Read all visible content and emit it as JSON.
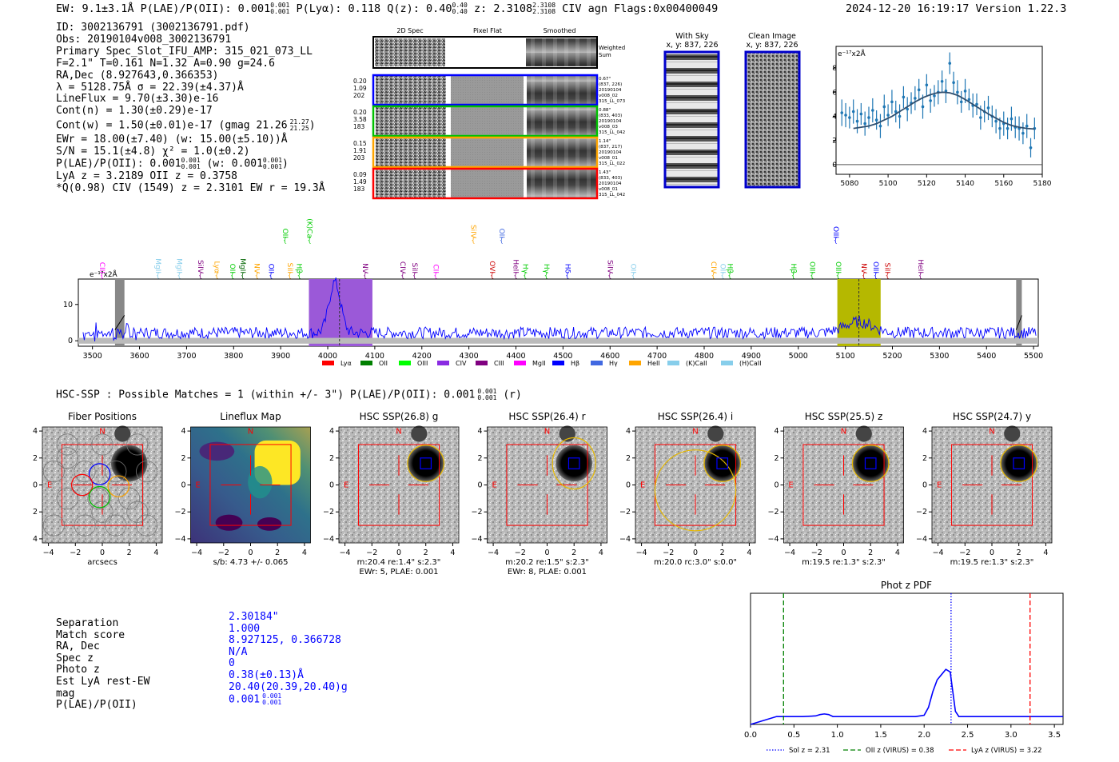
{
  "header": {
    "summary": "EW: 9.1±3.1Å  P(LAE)/P(OII): 0.001",
    "plae_frac": [
      "0.001",
      "0.001"
    ],
    "plya": "P(Lyα): 0.118",
    "q": "Q(z): 0.40",
    "q_frac": [
      "0.40",
      "0.40"
    ],
    "z": "z: 2.3108",
    "z_frac": [
      "2.3108",
      "2.3108"
    ],
    "rest": "CIV   agn   Flags:0x00400049",
    "date": "2024-12-20 16:19:17  Version 1.22.3"
  },
  "info": {
    "lines": [
      "ID: 3002136791 (3002136791.pdf)",
      "Obs: 20190104v008_3002136791",
      "Primary Spec_Slot_IFU_AMP: 315_021_073_LL",
      "F=2.1\"  T=0.161  N=1.32  A=0.90  g=24.6",
      "RA,Dec (8.927643,0.366353)",
      "λ = 5128.75Å  σ = 22.39(±4.37)Å",
      "LineFlux = 9.70(±3.30)e-16",
      "Cont(n) = 1.30(±0.29)e-17"
    ],
    "contw": "Cont(w) = 1.50(±0.01)e-17 (gmag 21.26",
    "contw_frac": [
      "21.27",
      "21.25"
    ],
    "ewr": "EWr = 18.00(±7.40)  (w: 15.00(±5.10))Å",
    "sn": "S/N = 15.1(±4.8)  χ² = 1.0(±0.2)",
    "plae": "P(LAE)/P(OII): 0.001",
    "plae_frac": [
      "0.001",
      "0.001"
    ],
    "plae_w": "(w: 0.001",
    "plae_w_frac": [
      "0.001",
      "0.001"
    ],
    "lya": "LyA z = 3.2189  OII z = 0.3758",
    "civ": "*Q(0.98) CIV (1549) z = 2.3101  EW r = 19.3Å"
  },
  "cutouts": {
    "headers": [
      "2D Spec",
      "Pixel Flat",
      "Smoothed"
    ],
    "weighted": "Weighted Sum",
    "rows": [
      {
        "left": [
          "0.20",
          "1.09",
          "202"
        ],
        "right": [
          "0.67\"",
          "(837, 226)",
          "20190104",
          "v008_02",
          "315_LL_073"
        ],
        "color": "#0000ff"
      },
      {
        "left": [
          "0.20",
          "3.58",
          "183"
        ],
        "right": [
          "0.88\"",
          "(833, 403)",
          "20190104",
          "v008_03",
          "315_LL_042"
        ],
        "color": "#00c000"
      },
      {
        "left": [
          "0.15",
          "1.91",
          "203"
        ],
        "right": [
          "1.14\"",
          "(837, 217)",
          "20190104",
          "v008_01",
          "315_LL_022"
        ],
        "color": "#ffa500"
      },
      {
        "left": [
          "0.09",
          "1.49",
          "183"
        ],
        "right": [
          "1.43\"",
          "(833, 403)",
          "20190104",
          "v008_01",
          "315_LL_042"
        ],
        "color": "#ff0000"
      }
    ]
  },
  "sky": {
    "with_sky": "With Sky",
    "clean": "Clean Image",
    "coords": "x, y: 837, 226"
  },
  "zoom_plot": {
    "ylabel": "e⁻¹⁷x2Å"
  },
  "spectrum": {
    "ylabel": "e⁻¹⁷x2Å",
    "lines": [
      {
        "name": "CIII",
        "color": "#ff00ff",
        "row": 1
      },
      {
        "name": "MgII",
        "color": "#87ceeb",
        "row": 1
      },
      {
        "name": "MgII",
        "color": "#87ceeb",
        "row": 1
      },
      {
        "name": "SiIV",
        "color": "#800080",
        "row": 1
      },
      {
        "name": "Lyα",
        "color": "#ffa500",
        "row": 1
      },
      {
        "name": "OII",
        "color": "#00cc00",
        "row": 1
      },
      {
        "name": "MgII",
        "color": "#006400",
        "row": 1
      },
      {
        "name": "NV",
        "color": "#ffa500",
        "row": 1
      },
      {
        "name": "OII",
        "color": "#0000ff",
        "row": 1
      },
      {
        "name": "SiII",
        "color": "#ffa500",
        "row": 1
      },
      {
        "name": "OII",
        "color": "#00cc00",
        "row": 0
      },
      {
        "name": "Hβ",
        "color": "#00cc00",
        "row": 1
      },
      {
        "name": "(K)Ca",
        "color": "#00cc00",
        "row": 0
      },
      {
        "name": "NV",
        "color": "#800080",
        "row": 1
      },
      {
        "name": "CIV",
        "color": "#800080",
        "row": 1
      },
      {
        "name": "SiII",
        "color": "#800080",
        "row": 1
      },
      {
        "name": "CII",
        "color": "#ff00ff",
        "row": 1
      },
      {
        "name": "SiIV",
        "color": "#ffa500",
        "row": 0
      },
      {
        "name": "OVI",
        "color": "#cc0000",
        "row": 1
      },
      {
        "name": "OII",
        "color": "#4169e1",
        "row": 0
      },
      {
        "name": "HeII",
        "color": "#800080",
        "row": 1
      },
      {
        "name": "Hγ",
        "color": "#00cc00",
        "row": 1
      },
      {
        "name": "Hγ",
        "color": "#00cc00",
        "row": 1
      },
      {
        "name": "Hδ",
        "color": "#0000ff",
        "row": 1
      },
      {
        "name": "SiIV",
        "color": "#800080",
        "row": 1
      },
      {
        "name": "OII",
        "color": "#87ceeb",
        "row": 1
      },
      {
        "name": "CIV",
        "color": "#ffa500",
        "row": 1
      },
      {
        "name": "OII",
        "color": "#87ceeb",
        "row": 1
      },
      {
        "name": "Hβ",
        "color": "#00cc00",
        "row": 1
      },
      {
        "name": "Hβ",
        "color": "#00cc00",
        "row": 1
      },
      {
        "name": "OIII",
        "color": "#00cc00",
        "row": 1
      },
      {
        "name": "OIII",
        "color": "#0000ff",
        "row": 0
      },
      {
        "name": "OIII",
        "color": "#00cc00",
        "row": 1
      },
      {
        "name": "NV",
        "color": "#cc0000",
        "row": 1
      },
      {
        "name": "OIII",
        "color": "#0000ff",
        "row": 1
      },
      {
        "name": "SiII",
        "color": "#cc0000",
        "row": 1
      },
      {
        "name": "HeII",
        "color": "#800080",
        "row": 1
      }
    ],
    "legend": [
      {
        "label": "Lyα",
        "color": "#ff0000"
      },
      {
        "label": "OII",
        "color": "#008000"
      },
      {
        "label": "OIII",
        "color": "#00ff00"
      },
      {
        "label": "CIV",
        "color": "#8a2be2"
      },
      {
        "label": "CIII",
        "color": "#800080"
      },
      {
        "label": "MgII",
        "color": "#ff00ff"
      },
      {
        "label": "Hβ",
        "color": "#0000ff"
      },
      {
        "label": "Hγ",
        "color": "#4169e1"
      },
      {
        "label": "HeII",
        "color": "#ffa500"
      },
      {
        "label": "(K)CaII",
        "color": "#87ceeb"
      },
      {
        "label": "(H)CaII",
        "color": "#87ceeb"
      }
    ]
  },
  "hsc": {
    "title": "HSC-SSP : Possible Matches = 1 (within +/- 3\")  P(LAE)/P(OII): 0.001",
    "title_frac": [
      "0.001",
      "0.001"
    ],
    "title_tail": "(r)",
    "panels": [
      {
        "title": "Fiber Positions",
        "caption": [
          "arcsecs"
        ],
        "kind": "fiber"
      },
      {
        "title": "Lineflux Map",
        "caption": [
          "s/b: 4.73 +/- 0.065"
        ],
        "kind": "lineflux"
      },
      {
        "title": "HSC SSP(26.8) g",
        "caption": [
          "m:20.4  re:1.4\"  s:2.3\"",
          "EWr: 5, PLAE: 0.001"
        ],
        "kind": "hsc"
      },
      {
        "title": "HSC SSP(26.4) r",
        "caption": [
          "m:20.2  re:1.5\"  s:2.3\"",
          "EWr: 8, PLAE: 0.001"
        ],
        "kind": "hsc"
      },
      {
        "title": "HSC SSP(26.4) i",
        "caption": [
          "m:20.0 rc:3.0\"  s:0.0\""
        ],
        "kind": "hsc"
      },
      {
        "title": "HSC SSP(25.5) z",
        "caption": [
          "m:19.5  re:1.3\"  s:2.3\""
        ],
        "kind": "hsc"
      },
      {
        "title": "HSC SSP(24.7) y",
        "caption": [
          "m:19.5  re:1.3\"  s:2.3\""
        ],
        "kind": "hsc"
      }
    ],
    "north": "N",
    "east": "E"
  },
  "match": {
    "labels": [
      "Separation",
      "Match score",
      "RA, Dec",
      "Spec z",
      "Photo z",
      "Est LyA rest-EW",
      "mag",
      "P(LAE)/P(OII)"
    ],
    "values": [
      "2.30184\"",
      "1.000",
      "8.927125, 0.366728",
      "N/A",
      "0",
      "0.38(±0.13)Å",
      "20.40(20.39,20.40)g",
      "0.001"
    ],
    "plae_frac": [
      "0.001",
      "0.001"
    ]
  },
  "chart_data": [
    {
      "type": "line",
      "title": "",
      "xlabel": "",
      "ylabel": "e⁻¹⁷x2Å",
      "xlim": [
        5073,
        5180
      ],
      "ylim": [
        -0.8,
        9.8
      ],
      "xticks": [
        5080,
        5100,
        5120,
        5140,
        5160,
        5180
      ],
      "yticks": [
        0,
        2,
        4,
        6,
        8
      ],
      "series": [
        {
          "name": "data",
          "x": [
            5076,
            5078,
            5080,
            5082,
            5084,
            5086,
            5088,
            5090,
            5092,
            5094,
            5096,
            5098,
            5100,
            5102,
            5104,
            5106,
            5108,
            5110,
            5112,
            5114,
            5116,
            5118,
            5120,
            5122,
            5124,
            5126,
            5128,
            5130,
            5132,
            5134,
            5136,
            5138,
            5140,
            5142,
            5144,
            5146,
            5148,
            5150,
            5152,
            5154,
            5156,
            5158,
            5160,
            5162,
            5164,
            5166,
            5168,
            5170,
            5172,
            5174,
            5176
          ],
          "y": [
            4.3,
            4.1,
            3.9,
            4.4,
            3.6,
            4.2,
            3.4,
            3.9,
            4.5,
            3.7,
            3.2,
            4.8,
            4.1,
            5.2,
            4.4,
            4.0,
            5.6,
            4.6,
            5.1,
            5.5,
            6.2,
            4.8,
            6.6,
            5.3,
            5.7,
            6.0,
            6.9,
            6.1,
            8.4,
            6.8,
            6.0,
            5.2,
            6.1,
            5.4,
            4.9,
            5.0,
            3.9,
            4.4,
            4.7,
            4.0,
            3.6,
            3.0,
            3.4,
            3.0,
            3.8,
            3.1,
            3.0,
            2.6,
            3.2,
            1.4,
            3.0
          ],
          "err": [
            1.1,
            1.0,
            0.9,
            1.0,
            1.0,
            0.9,
            1.0,
            0.9,
            1.0,
            0.8,
            1.0,
            1.0,
            0.9,
            1.0,
            0.9,
            1.0,
            0.9,
            1.0,
            0.9,
            1.0,
            0.9,
            1.0,
            0.9,
            1.0,
            0.9,
            1.0,
            0.9,
            1.0,
            0.9,
            0.9,
            1.0,
            0.9,
            1.0,
            0.9,
            1.0,
            0.9,
            1.0,
            0.9,
            1.0,
            0.9,
            1.0,
            0.9,
            1.0,
            0.9,
            1.0,
            0.9,
            1.0,
            0.9,
            1.0,
            0.8,
            0.9
          ]
        },
        {
          "name": "gaussian fit",
          "x": [
            5082,
            5086,
            5090,
            5094,
            5098,
            5102,
            5106,
            5110,
            5114,
            5118,
            5122,
            5126,
            5128.75,
            5132,
            5136,
            5140,
            5144,
            5148,
            5152,
            5156,
            5160,
            5164,
            5168,
            5172,
            5176
          ],
          "y": [
            3.0,
            3.1,
            3.2,
            3.4,
            3.7,
            4.0,
            4.4,
            4.8,
            5.2,
            5.55,
            5.8,
            5.97,
            6.0,
            5.95,
            5.75,
            5.4,
            5.0,
            4.6,
            4.2,
            3.85,
            3.5,
            3.25,
            3.1,
            3.0,
            2.95
          ]
        }
      ]
    },
    {
      "type": "line",
      "title": "",
      "xlabel": "",
      "ylabel": "e⁻¹⁷x2Å",
      "xlim": [
        3470,
        5510
      ],
      "ylim": [
        -1.5,
        17
      ],
      "xticks": [
        3500,
        3600,
        3700,
        3800,
        3900,
        4000,
        4100,
        4200,
        4300,
        4400,
        4500,
        4600,
        4700,
        4800,
        4900,
        5000,
        5100,
        5200,
        5300,
        5400,
        5500
      ],
      "yticks": [
        0,
        10
      ],
      "line_waves": [
        3521,
        3640,
        3685,
        3730,
        3765,
        3798,
        3820,
        3850,
        3880,
        3920,
        3910,
        3940,
        3962,
        4080,
        4160,
        4185,
        4230,
        4310,
        4350,
        4370,
        4400,
        4420,
        4465,
        4510,
        4600,
        4650,
        4820,
        4840,
        4855,
        4990,
        5030,
        5080,
        5085,
        5140,
        5165,
        5190,
        5260
      ],
      "highlight_bands": [
        [
          3960,
          4095,
          "#9b59d8"
        ],
        [
          5083,
          5175,
          "#b5b800"
        ]
      ],
      "grey_bands": [
        [
          3548,
          3568
        ],
        [
          5463,
          5475
        ]
      ],
      "dashed": [
        4025,
        5128.75
      ],
      "features": [
        {
          "x": 4015,
          "y": 16
        },
        {
          "x": 5128,
          "y": 5
        }
      ]
    },
    {
      "type": "line",
      "title": "Phot z PDF",
      "xlabel": "",
      "ylabel": "",
      "xlim": [
        0.0,
        3.6
      ],
      "ylim": [
        0,
        1
      ],
      "xticks": [
        0.0,
        0.5,
        1.0,
        1.5,
        2.0,
        2.5,
        3.0,
        3.5
      ],
      "series": [
        {
          "name": "pdf",
          "x": [
            0.0,
            0.3,
            0.6,
            0.75,
            0.8,
            0.85,
            0.9,
            0.95,
            1.5,
            1.9,
            2.0,
            2.05,
            2.1,
            2.15,
            2.2,
            2.25,
            2.3,
            2.33,
            2.36,
            2.4,
            2.5,
            3.0,
            3.6
          ],
          "y": [
            0.0,
            0.06,
            0.06,
            0.065,
            0.075,
            0.08,
            0.075,
            0.06,
            0.06,
            0.06,
            0.07,
            0.13,
            0.25,
            0.34,
            0.38,
            0.42,
            0.4,
            0.25,
            0.1,
            0.06,
            0.06,
            0.06,
            0.06
          ]
        }
      ],
      "vlines": [
        {
          "x": 2.31,
          "label": "Sol z = 2.31",
          "color": "#0000ff",
          "style": "dotted"
        },
        {
          "x": 0.38,
          "label": "OII z (VIRUS) = 0.38",
          "color": "#008000",
          "style": "dashed"
        },
        {
          "x": 3.22,
          "label": "LyA z (VIRUS) = 3.22",
          "color": "#ff0000",
          "style": "dashed"
        }
      ]
    }
  ]
}
